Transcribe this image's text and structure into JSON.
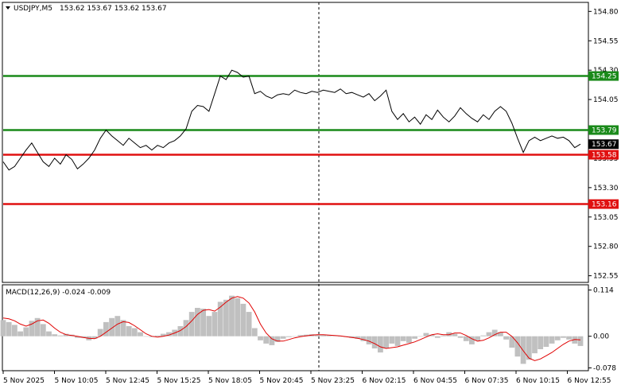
{
  "header": {
    "symbol": "USDJPY,M5",
    "ohlc": "153.62 153.67 153.62 153.67"
  },
  "colors": {
    "price_line": "#000000",
    "support_green": "#1a8a1a",
    "resistance_red": "#e01010",
    "macd_hist": "#c0c0c0",
    "macd_signal": "#e00000",
    "current_price_box": "#000000",
    "grid_dashed": "#000000"
  },
  "chart_data": [
    {
      "type": "line",
      "panel": "price",
      "y_ticks": [
        "154.80",
        "154.55",
        "154.30",
        "154.05",
        "153.55",
        "153.30",
        "153.05",
        "152.80",
        "152.55"
      ],
      "ylim": [
        152.5,
        154.87
      ],
      "levels": [
        {
          "value": 154.25,
          "label": "154.25",
          "color": "#1a8a1a"
        },
        {
          "value": 153.79,
          "label": "153.79",
          "color": "#1a8a1a"
        },
        {
          "value": 153.58,
          "label": "153.58",
          "color": "#e01010"
        },
        {
          "value": 153.16,
          "label": "153.16",
          "color": "#e01010"
        }
      ],
      "current_price": {
        "value": 153.67,
        "label": "153.67"
      },
      "series": [
        {
          "values": [
            153.52,
            153.45,
            153.48,
            153.55,
            153.62,
            153.68,
            153.6,
            153.52,
            153.48,
            153.55,
            153.5,
            153.58,
            153.54,
            153.46,
            153.5,
            153.55,
            153.62,
            153.72,
            153.79,
            153.74,
            153.7,
            153.66,
            153.72,
            153.68,
            153.64,
            153.66,
            153.62,
            153.66,
            153.64,
            153.68,
            153.7,
            153.74,
            153.8,
            153.95,
            154.0,
            153.99,
            153.95,
            154.1,
            154.25,
            154.22,
            154.3,
            154.28,
            154.24,
            154.25,
            154.1,
            154.12,
            154.08,
            154.06,
            154.09,
            154.1,
            154.09,
            154.13,
            154.11,
            154.1,
            154.12,
            154.11,
            154.13,
            154.12,
            154.11,
            154.14,
            154.1,
            154.11,
            154.09,
            154.07,
            154.1,
            154.04,
            154.08,
            154.13,
            153.95,
            153.88,
            153.93,
            153.86,
            153.9,
            153.84,
            153.92,
            153.88,
            153.96,
            153.9,
            153.86,
            153.91,
            153.98,
            153.93,
            153.89,
            153.86,
            153.92,
            153.88,
            153.95,
            153.99,
            153.95,
            153.85,
            153.72,
            153.6,
            153.7,
            153.73,
            153.7,
            153.72,
            153.74,
            153.72,
            153.73,
            153.7,
            153.64,
            153.67
          ]
        }
      ]
    },
    {
      "type": "bar",
      "panel": "macd",
      "title": "MACD(12,26,9) -0.024 -0.009",
      "y_ticks": [
        "0.114",
        "0.00",
        "-0.078"
      ],
      "ylim": [
        -0.083,
        0.125
      ],
      "x_ticks": [
        "5 Nov 2025",
        "5 Nov 10:05",
        "5 Nov 12:45",
        "5 Nov 15:25",
        "5 Nov 18:05",
        "5 Nov 20:45",
        "5 Nov 23:25",
        "6 Nov 02:15",
        "6 Nov 04:55",
        "6 Nov 07:35",
        "6 Nov 10:15",
        "6 Nov 12:55"
      ],
      "series": [
        {
          "name": "histogram",
          "values": [
            0.04,
            0.035,
            0.028,
            0.012,
            0.022,
            0.038,
            0.045,
            0.03,
            0.012,
            0.005,
            0.002,
            0.006,
            0.004,
            -0.004,
            -0.004,
            -0.01,
            -0.006,
            0.018,
            0.035,
            0.045,
            0.05,
            0.04,
            0.025,
            0.02,
            0.01,
            0.0,
            -0.002,
            0.002,
            0.006,
            0.01,
            0.016,
            0.025,
            0.04,
            0.06,
            0.07,
            0.068,
            0.05,
            0.06,
            0.085,
            0.09,
            0.1,
            0.094,
            0.08,
            0.06,
            0.02,
            -0.01,
            -0.018,
            -0.022,
            -0.014,
            -0.006,
            -0.002,
            0.0,
            0.003,
            0.004,
            0.005,
            0.004,
            0.003,
            0.002,
            0.001,
            0.0,
            -0.002,
            -0.004,
            -0.006,
            -0.012,
            -0.02,
            -0.03,
            -0.04,
            -0.03,
            -0.018,
            -0.024,
            -0.012,
            -0.016,
            -0.006,
            0.0,
            0.008,
            0.004,
            -0.004,
            0.002,
            0.01,
            0.006,
            -0.004,
            -0.012,
            -0.02,
            -0.01,
            0.002,
            0.01,
            0.016,
            0.01,
            -0.008,
            -0.028,
            -0.05,
            -0.068,
            -0.058,
            -0.042,
            -0.032,
            -0.026,
            -0.018,
            -0.01,
            -0.004,
            -0.008,
            -0.018,
            -0.024
          ]
        },
        {
          "name": "signal",
          "values": [
            0.045,
            0.043,
            0.038,
            0.03,
            0.025,
            0.03,
            0.038,
            0.04,
            0.032,
            0.02,
            0.01,
            0.004,
            0.002,
            0.0,
            -0.003,
            -0.005,
            -0.006,
            0.0,
            0.01,
            0.02,
            0.03,
            0.036,
            0.034,
            0.026,
            0.016,
            0.006,
            0.0,
            -0.002,
            0.0,
            0.003,
            0.008,
            0.014,
            0.024,
            0.038,
            0.054,
            0.064,
            0.066,
            0.062,
            0.072,
            0.084,
            0.094,
            0.098,
            0.094,
            0.082,
            0.06,
            0.03,
            0.008,
            -0.006,
            -0.012,
            -0.012,
            -0.008,
            -0.004,
            -0.001,
            0.001,
            0.003,
            0.004,
            0.004,
            0.003,
            0.002,
            0.001,
            -0.001,
            -0.003,
            -0.005,
            -0.008,
            -0.012,
            -0.018,
            -0.026,
            -0.03,
            -0.028,
            -0.026,
            -0.022,
            -0.018,
            -0.014,
            -0.008,
            -0.002,
            0.004,
            0.006,
            0.004,
            0.004,
            0.008,
            0.008,
            0.002,
            -0.006,
            -0.012,
            -0.01,
            -0.004,
            0.004,
            0.01,
            0.01,
            0.0,
            -0.016,
            -0.036,
            -0.054,
            -0.06,
            -0.056,
            -0.048,
            -0.04,
            -0.03,
            -0.02,
            -0.012,
            -0.008,
            -0.009
          ]
        }
      ]
    }
  ]
}
